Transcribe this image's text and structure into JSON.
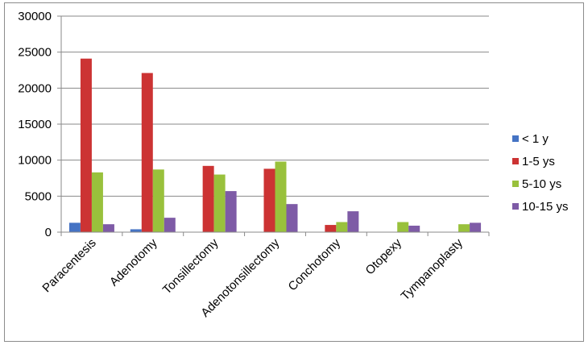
{
  "chart_data": {
    "type": "bar",
    "categories": [
      "Paracentesis",
      "Adenotomy",
      "Tonsillectomy",
      "Adenotonsillectomy",
      "Conchotomy",
      "Otopexy",
      "Tympanoplasty"
    ],
    "series": [
      {
        "name": "< 1 y",
        "color": "#4573c4",
        "values": [
          1300,
          400,
          0,
          0,
          0,
          0,
          0
        ]
      },
      {
        "name": "1-5 ys",
        "color": "#cc3333",
        "values": [
          24100,
          22100,
          9200,
          8800,
          1000,
          0,
          0
        ]
      },
      {
        "name": "5-10 ys",
        "color": "#99c13c",
        "values": [
          8300,
          8700,
          8000,
          9800,
          1400,
          1400,
          1100
        ]
      },
      {
        "name": "10-15 ys",
        "color": "#7e5ba6",
        "values": [
          1100,
          2000,
          5700,
          3900,
          2900,
          900,
          1300
        ]
      }
    ],
    "ylim": [
      0,
      30000
    ],
    "yticks": [
      0,
      5000,
      10000,
      15000,
      20000,
      25000,
      30000
    ],
    "grid": true,
    "legend_position": "right",
    "title": "",
    "xlabel": "",
    "ylabel": ""
  }
}
